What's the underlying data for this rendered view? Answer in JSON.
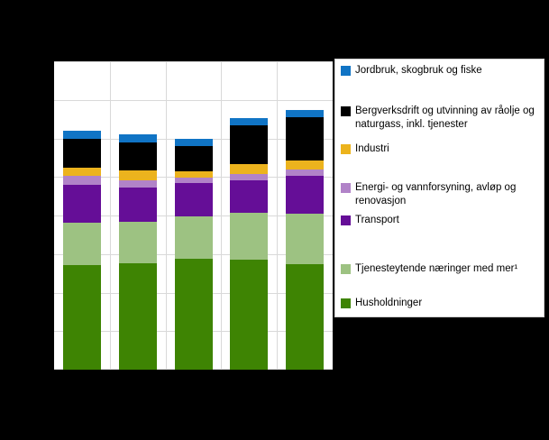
{
  "window": {
    "background_color": "#000000",
    "plot_background_color": "#FFFFFF",
    "gridline_color": "#D9D9D9"
  },
  "legend": {
    "background_color": "#FFFFFF",
    "border_color": "#D0D0D0",
    "items": [
      {
        "label": "Jordbruk, skogbruk og fiske",
        "color": "#1074C5",
        "swatch": "blue-square"
      },
      {
        "label": "Bergverksdrift og utvinning av råolje og naturgass, inkl. tjenester",
        "color": "#000000",
        "swatch": "black-square"
      },
      {
        "label": "Industri",
        "color": "#ECB31D",
        "swatch": "yellow-square"
      },
      {
        "label": "Energi- og vannforsyning, avløp og renovasjon",
        "color": "#B183C8",
        "swatch": "light-purple-square"
      },
      {
        "label": "Transport",
        "color": "#650E97",
        "swatch": "dark-purple-square"
      },
      {
        "label": "Tjenesteytende næringer med mer¹",
        "color": "#9DC282",
        "swatch": "light-green-square"
      },
      {
        "label": "Husholdninger",
        "color": "#3E8403",
        "swatch": "dark-green-square"
      }
    ]
  },
  "chart_data": {
    "type": "bar",
    "stacked": true,
    "title": "",
    "categories": [
      "",
      "",
      "",
      "",
      ""
    ],
    "series": [
      {
        "name": "Husholdninger",
        "color": "#3E8403",
        "values": [
          2.72,
          2.75,
          2.88,
          2.86,
          2.74
        ]
      },
      {
        "name": "Tjenesteytende næringer med mer¹",
        "color": "#9DC282",
        "values": [
          1.09,
          1.08,
          1.09,
          1.2,
          1.3
        ]
      },
      {
        "name": "Transport",
        "color": "#650E97",
        "values": [
          0.98,
          0.89,
          0.88,
          0.86,
          0.99
        ]
      },
      {
        "name": "Energi- og vannforsyning, avløp og renovasjon",
        "color": "#B183C8",
        "values": [
          0.23,
          0.2,
          0.13,
          0.16,
          0.16
        ]
      },
      {
        "name": "Industri",
        "color": "#ECB31D",
        "values": [
          0.23,
          0.26,
          0.16,
          0.25,
          0.23
        ]
      },
      {
        "name": "Bergverksdrift og utvinning av råolje og naturgass, inkl. tjenester",
        "color": "#000000",
        "values": [
          0.74,
          0.72,
          0.67,
          1.0,
          1.13
        ]
      },
      {
        "name": "Jordbruk, skogbruk og fiske",
        "color": "#1074C5",
        "values": [
          0.22,
          0.2,
          0.19,
          0.2,
          0.19
        ]
      }
    ],
    "ylim": [
      0,
      8
    ],
    "y_gridline_interval": 1,
    "x_categories_count": 5,
    "axis_tick_labels_visible": false,
    "legend_position": "right",
    "grid": true
  }
}
